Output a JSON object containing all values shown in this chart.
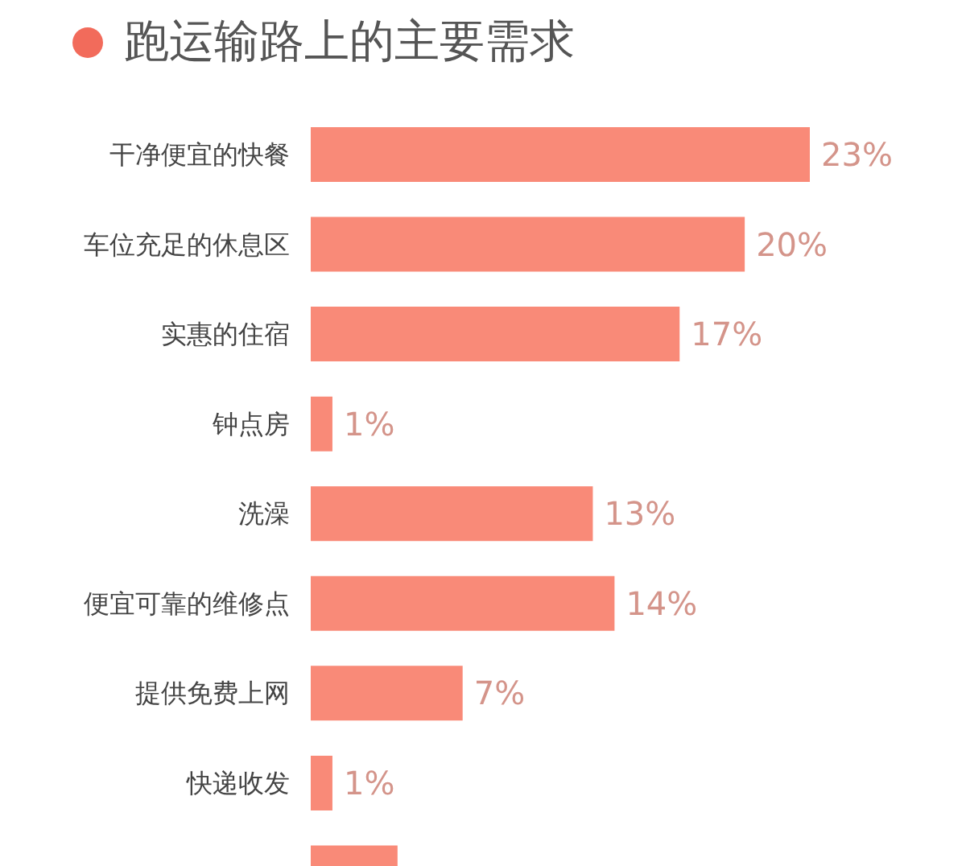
{
  "chart_data": {
    "type": "bar",
    "orientation": "horizontal",
    "title": "跑运输路上的主要需求",
    "categories": [
      "干净便宜的快餐",
      "车位充足的休息区",
      "实惠的住宿",
      "钟点房",
      "洗澡",
      "便宜可靠的维修点",
      "提供免费上网",
      "快递收发",
      null
    ],
    "values": [
      23,
      20,
      17,
      1,
      13,
      14,
      7,
      1,
      4
    ],
    "value_labels": [
      "23%",
      "20%",
      "17%",
      "1%",
      "13%",
      "14%",
      "7%",
      "1%",
      null
    ],
    "color": "#f98a78"
  }
}
